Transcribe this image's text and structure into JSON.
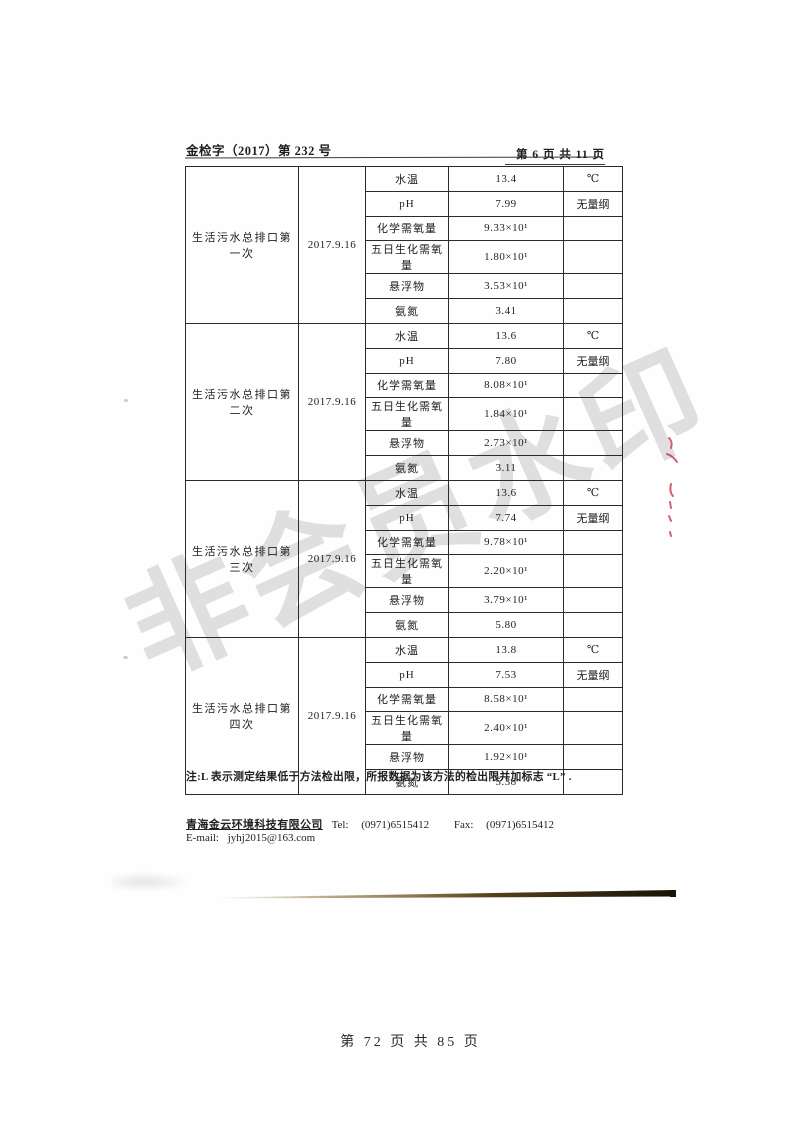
{
  "page": {
    "doc_number": "金检字（2017）第 232 号",
    "page_indicator": "第 6 页 共 11 页",
    "watermark": "非会员水印",
    "note": "注:L 表示测定结果低于方法检出限，所报数据为该方法的检出限并加标志 “L” .",
    "company": {
      "name": "青海金云环境科技有限公司",
      "tel_label": "Tel:",
      "tel": "(0971)6515412",
      "fax_label": "Fax:",
      "fax": "(0971)6515412",
      "email_label": "E-mail:",
      "email": "jyhj2015@163.com"
    },
    "footer": "第 72 页 共 85 页"
  },
  "table": {
    "groups": [
      {
        "name": "生活污水总排口第一次",
        "date": "2017.9.16",
        "rows": [
          {
            "param": "水温",
            "value": "13.4",
            "unit": "℃"
          },
          {
            "param": "pH",
            "value": "7.99",
            "unit": "无量纲"
          },
          {
            "param": "化学需氧量",
            "value": "9.33×10¹",
            "unit": ""
          },
          {
            "param": "五日生化需氧量",
            "value": "1.80×10¹",
            "unit": ""
          },
          {
            "param": "悬浮物",
            "value": "3.53×10¹",
            "unit": ""
          },
          {
            "param": "氨氮",
            "value": "3.41",
            "unit": ""
          }
        ]
      },
      {
        "name": "生活污水总排口第二次",
        "date": "2017.9.16",
        "rows": [
          {
            "param": "水温",
            "value": "13.6",
            "unit": "℃"
          },
          {
            "param": "pH",
            "value": "7.80",
            "unit": "无量纲"
          },
          {
            "param": "化学需氧量",
            "value": "8.08×10¹",
            "unit": ""
          },
          {
            "param": "五日生化需氧量",
            "value": "1.84×10¹",
            "unit": ""
          },
          {
            "param": "悬浮物",
            "value": "2.73×10¹",
            "unit": ""
          },
          {
            "param": "氨氮",
            "value": "3.11",
            "unit": ""
          }
        ]
      },
      {
        "name": "生活污水总排口第三次",
        "date": "2017.9.16",
        "rows": [
          {
            "param": "水温",
            "value": "13.6",
            "unit": "℃"
          },
          {
            "param": "pH",
            "value": "7.74",
            "unit": "无量纲"
          },
          {
            "param": "化学需氧量",
            "value": "9.78×10¹",
            "unit": ""
          },
          {
            "param": "五日生化需氧量",
            "value": "2.20×10¹",
            "unit": ""
          },
          {
            "param": "悬浮物",
            "value": "3.79×10¹",
            "unit": ""
          },
          {
            "param": "氨氮",
            "value": "5.80",
            "unit": ""
          }
        ]
      },
      {
        "name": "生活污水总排口第四次",
        "date": "2017.9.16",
        "rows": [
          {
            "param": "水温",
            "value": "13.8",
            "unit": "℃"
          },
          {
            "param": "pH",
            "value": "7.53",
            "unit": "无量纲"
          },
          {
            "param": "化学需氧量",
            "value": "8.58×10¹",
            "unit": ""
          },
          {
            "param": "五日生化需氧量",
            "value": "2.40×10¹",
            "unit": ""
          },
          {
            "param": "悬浮物",
            "value": "1.92×10¹",
            "unit": ""
          },
          {
            "param": "氨氮",
            "value": "5.38",
            "unit": ""
          }
        ]
      }
    ]
  }
}
